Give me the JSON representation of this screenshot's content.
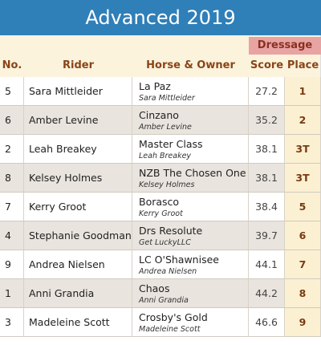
{
  "title": "Advanced 2019",
  "group_header": "Dressage",
  "columns": [
    "No.",
    "Rider",
    "Horse & Owner",
    "Score",
    "Place"
  ],
  "rows": [
    {
      "no": "5",
      "rider": "Sara Mittleider",
      "horse": "La Paz",
      "owner": "Sara Mittleider",
      "score": "27.2",
      "place": "1"
    },
    {
      "no": "6",
      "rider": "Amber Levine",
      "horse": "Cinzano",
      "owner": "Amber Levine",
      "score": "35.2",
      "place": "2"
    },
    {
      "no": "2",
      "rider": "Leah Breakey",
      "horse": "Master Class",
      "owner": "Leah Breakey",
      "score": "38.1",
      "place": "3T"
    },
    {
      "no": "8",
      "rider": "Kelsey Holmes",
      "horse": "NZB The Chosen One",
      "owner": "Kelsey Holmes",
      "score": "38.1",
      "place": "3T"
    },
    {
      "no": "7",
      "rider": "Kerry Groot",
      "horse": "Borasco",
      "owner": "Kerry Groot",
      "score": "38.4",
      "place": "5"
    },
    {
      "no": "4",
      "rider": "Stephanie Goodman",
      "horse": "Drs Resolute",
      "owner": "Get LuckyLLC",
      "score": "39.7",
      "place": "6"
    },
    {
      "no": "9",
      "rider": "Andrea Nielsen",
      "horse": "LC O'Shawnisee",
      "owner": "Andrea Nielsen",
      "score": "44.1",
      "place": "7"
    },
    {
      "no": "1",
      "rider": "Anni Grandia",
      "horse": "Chaos",
      "owner": "Anni Grandia",
      "score": "44.2",
      "place": "8"
    },
    {
      "no": "3",
      "rider": "Madeleine Scott",
      "horse": "Crosby's Gold",
      "owner": "Madeleine Scott",
      "score": "46.6",
      "place": "9"
    }
  ]
}
